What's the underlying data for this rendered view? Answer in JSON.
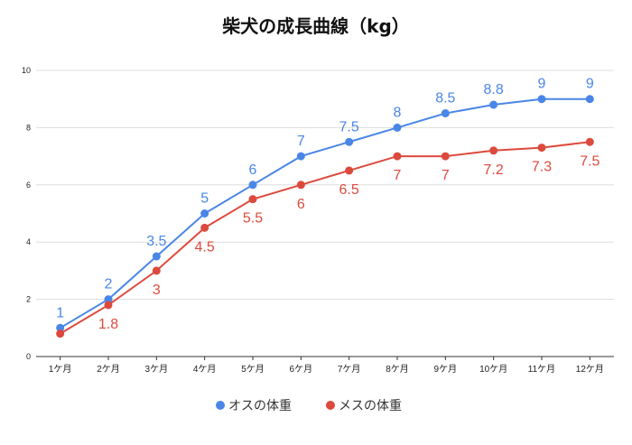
{
  "chart_data": {
    "type": "line",
    "title": "柴犬の成長曲線（kg）",
    "xlabel": "",
    "ylabel": "",
    "categories": [
      "1ケ月",
      "2ケ月",
      "3ケ月",
      "4ケ月",
      "5ケ月",
      "6ケ月",
      "7ケ月",
      "8ケ月",
      "9ケ月",
      "10ケ月",
      "11ケ月",
      "12ケ月"
    ],
    "ylim": [
      0,
      10
    ],
    "yticks": [
      0,
      2,
      4,
      6,
      8,
      10
    ],
    "grid": true,
    "legend_position": "bottom",
    "series": [
      {
        "name": "オスの体重",
        "color": "#4a86e8",
        "values": [
          1,
          2,
          3.5,
          5,
          6,
          7,
          7.5,
          8,
          8.5,
          8.8,
          9,
          9
        ],
        "labels": [
          "1",
          "2",
          "3.5",
          "5",
          "6",
          "7",
          "7.5",
          "8",
          "8.5",
          "8.8",
          "9",
          "9"
        ],
        "label_position": "above"
      },
      {
        "name": "メスの体重",
        "color": "#dc4a3d",
        "values": [
          0.8,
          1.8,
          3,
          4.5,
          5.5,
          6,
          6.5,
          7,
          7,
          7.2,
          7.3,
          7.5
        ],
        "labels": [
          "",
          "1.8",
          "3",
          "4.5",
          "5.5",
          "6",
          "6.5",
          "7",
          "7",
          "7.2",
          "7.3",
          "7.5"
        ],
        "label_position": "below"
      }
    ]
  }
}
